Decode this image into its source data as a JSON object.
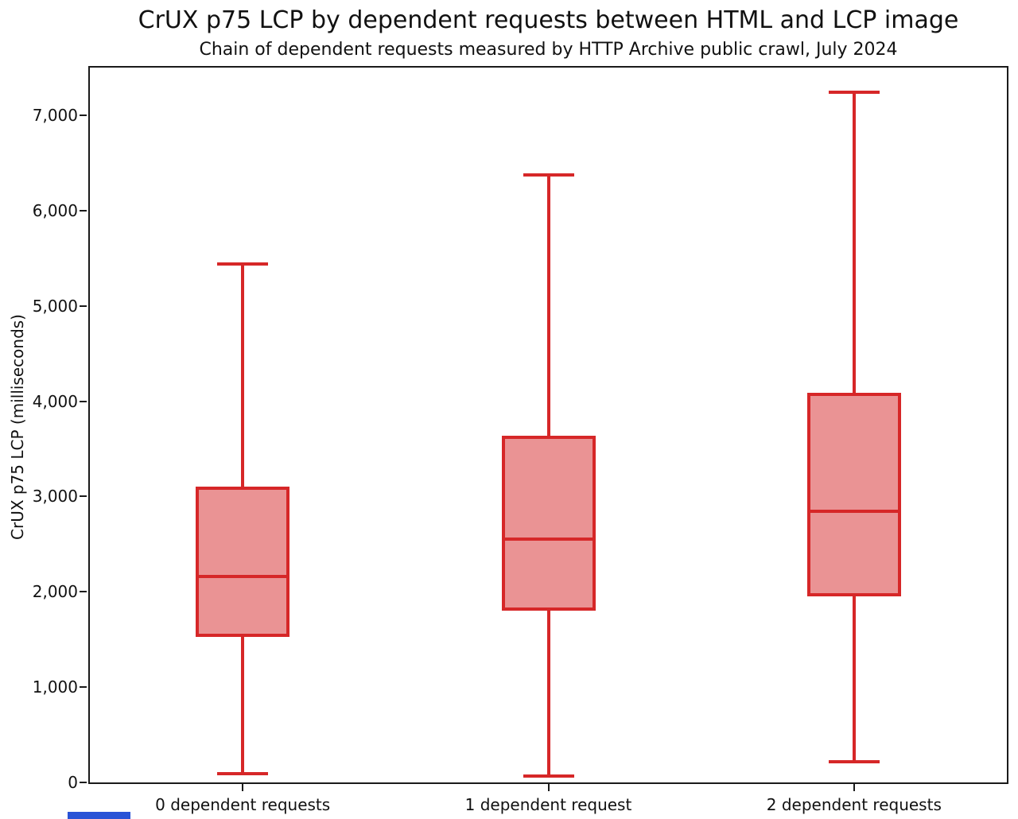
{
  "page": {
    "background": "#ffffff"
  },
  "chart_data": {
    "type": "boxplot",
    "title": "CrUX p75 LCP by dependent requests between HTML and LCP image",
    "subtitle": "Chain of dependent requests measured by HTTP Archive public crawl, July 2024",
    "ylabel": "CrUX p75 LCP (milliseconds)",
    "xlabel": "",
    "ylim": [
      0,
      7500
    ],
    "yticks": [
      0,
      1000,
      2000,
      3000,
      4000,
      5000,
      6000,
      7000
    ],
    "ytick_labels": [
      "0",
      "1,000",
      "2,000",
      "3,000",
      "4,000",
      "5,000",
      "6,000",
      "7,000"
    ],
    "categories": [
      "0 dependent requests",
      "1 dependent request",
      "2 dependent requests"
    ],
    "series": [
      {
        "category": "0 dependent requests",
        "whisker_low": 90,
        "q1": 1530,
        "median": 2160,
        "q3": 3100,
        "whisker_high": 5440
      },
      {
        "category": "1 dependent request",
        "whisker_low": 65,
        "q1": 1805,
        "median": 2555,
        "q3": 3640,
        "whisker_high": 6370
      },
      {
        "category": "2 dependent requests",
        "whisker_low": 215,
        "q1": 1955,
        "median": 2845,
        "q3": 4090,
        "whisker_high": 7240
      }
    ],
    "grid": false,
    "legend": null,
    "colors": {
      "box_edge": "#d62728",
      "box_fill": "#ea9394",
      "axis": "#1a1a1a",
      "text": "#111111",
      "artifact_blue": "#2953d6"
    }
  }
}
